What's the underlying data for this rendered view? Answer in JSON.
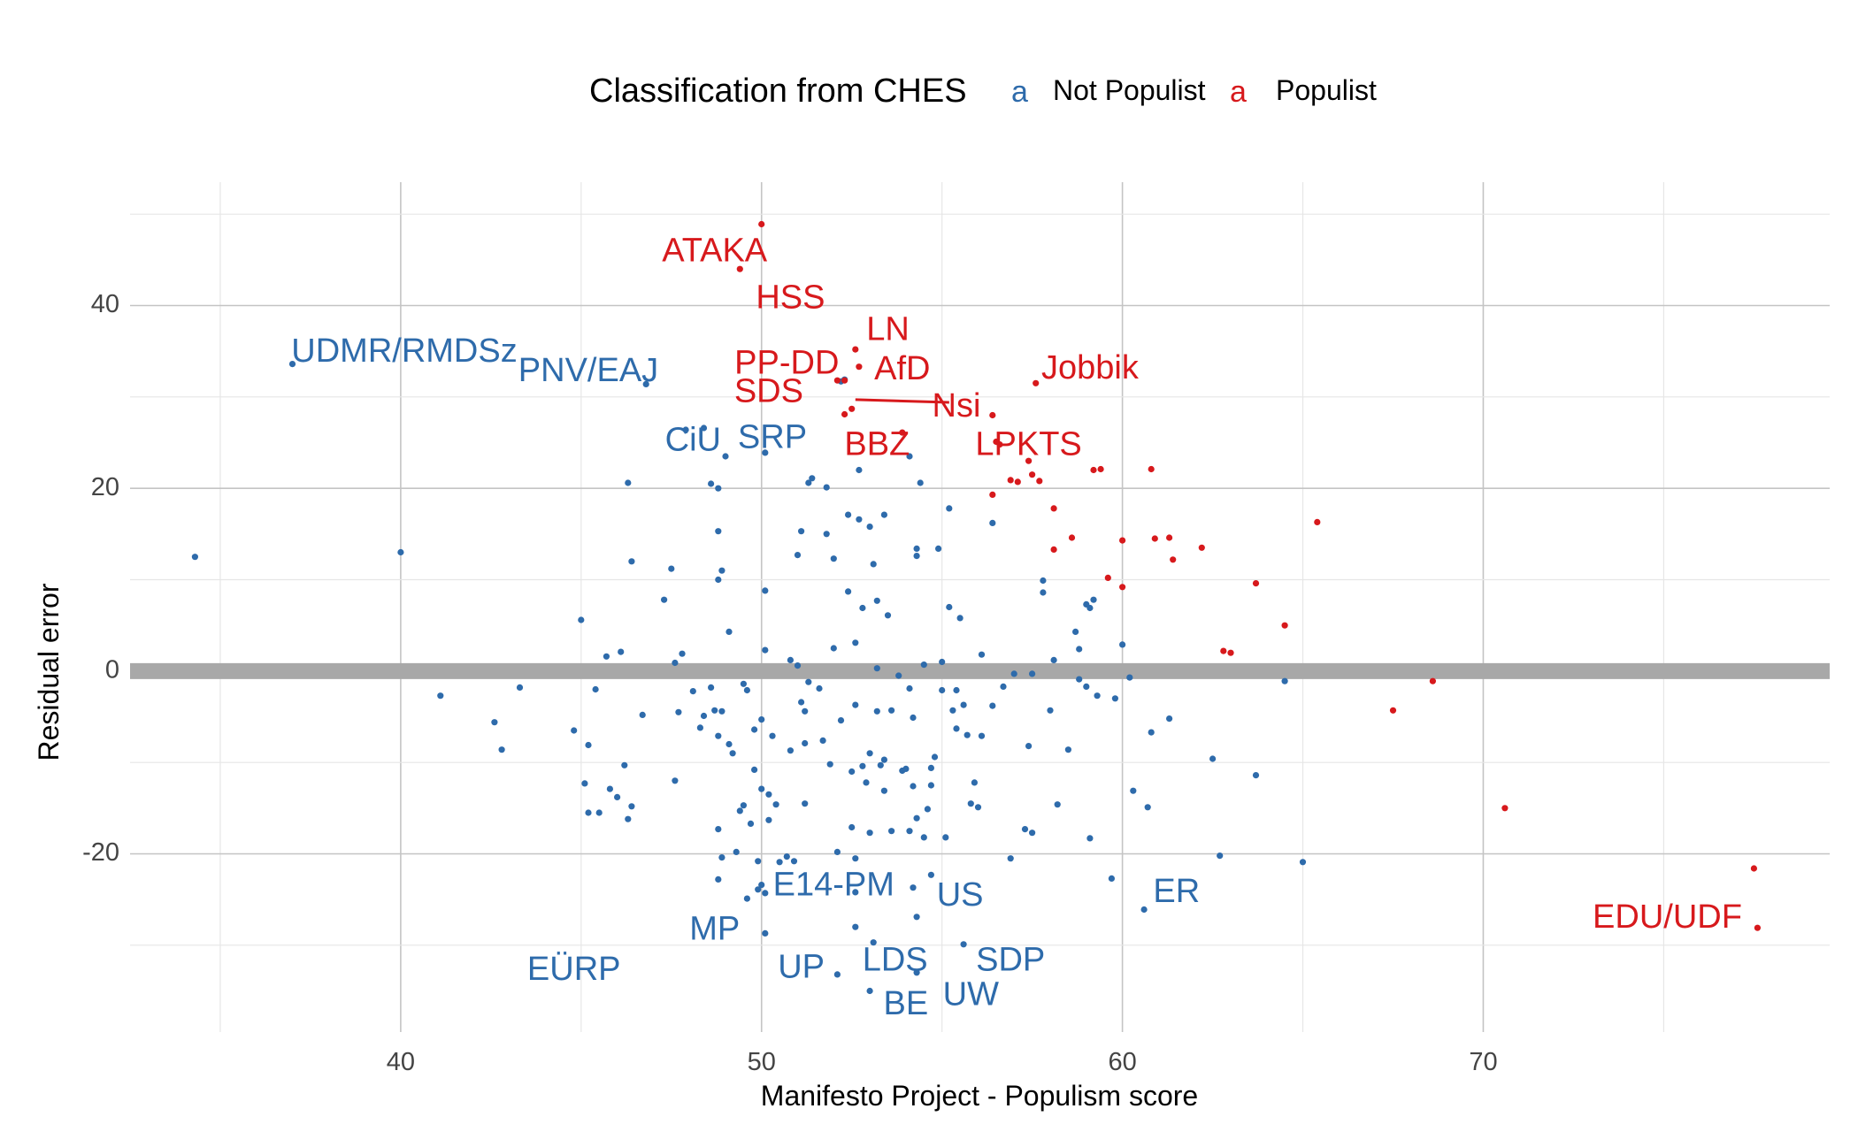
{
  "chart_data": {
    "type": "scatter",
    "title": "",
    "xlabel": "Manifesto Project - Populism score",
    "ylabel": "Residual error",
    "xlim": [
      32.5,
      79.6
    ],
    "ylim": [
      -39.5,
      53.5
    ],
    "x_ticks": [
      40,
      50,
      60,
      70
    ],
    "y_ticks": [
      -20,
      0,
      20,
      40
    ],
    "x_tick_labels": [
      "40",
      "50",
      "60",
      "70"
    ],
    "y_tick_labels": [
      "-20",
      "0",
      "20",
      "40"
    ],
    "grid": true,
    "reference_line_y": 0,
    "legend": {
      "title": "Classification from CHES",
      "placement": "top",
      "entries": [
        {
          "label": "Not Populist",
          "key": "a",
          "color": "#2e6bab"
        },
        {
          "label": "Populist",
          "key": "a",
          "color": "#d7191c"
        }
      ]
    },
    "colors": {
      "Not Populist": "#2e6bab",
      "Populist": "#d7191c",
      "reference_line": "#a8a8a8",
      "grid": "#d9d9d9"
    },
    "series": [
      {
        "name": "Not Populist",
        "points": [
          [
            34.3,
            12.5
          ],
          [
            37.0,
            33.6
          ],
          [
            40.0,
            13.0
          ],
          [
            41.1,
            -2.7
          ],
          [
            42.6,
            -5.6
          ],
          [
            42.8,
            -8.6
          ],
          [
            43.3,
            -1.8
          ],
          [
            44.8,
            -6.5
          ],
          [
            45.1,
            -12.3
          ],
          [
            45.2,
            -8.1
          ],
          [
            45.0,
            5.6
          ],
          [
            45.2,
            -15.5
          ],
          [
            45.5,
            -15.5
          ],
          [
            45.4,
            -2.0
          ],
          [
            45.7,
            1.6
          ],
          [
            45.8,
            -12.9
          ],
          [
            46.0,
            -13.8
          ],
          [
            46.1,
            2.1
          ],
          [
            46.2,
            -10.3
          ],
          [
            46.3,
            -16.2
          ],
          [
            46.4,
            -14.8
          ],
          [
            46.4,
            12.0
          ],
          [
            46.3,
            20.6
          ],
          [
            46.7,
            -4.8
          ],
          [
            46.8,
            31.4
          ],
          [
            47.3,
            7.8
          ],
          [
            47.5,
            11.2
          ],
          [
            47.6,
            -12.0
          ],
          [
            47.6,
            0.9
          ],
          [
            47.8,
            1.9
          ],
          [
            47.7,
            -4.5
          ],
          [
            47.9,
            26.4
          ],
          [
            48.1,
            -2.2
          ],
          [
            48.3,
            -6.2
          ],
          [
            48.4,
            -4.9
          ],
          [
            48.4,
            26.6
          ],
          [
            48.6,
            20.5
          ],
          [
            48.6,
            -1.8
          ],
          [
            48.7,
            -4.3
          ],
          [
            48.8,
            -7.1
          ],
          [
            48.8,
            20.0
          ],
          [
            48.8,
            10.0
          ],
          [
            48.8,
            15.3
          ],
          [
            48.9,
            -4.4
          ],
          [
            48.9,
            11.0
          ],
          [
            48.8,
            -17.3
          ],
          [
            48.8,
            -22.8
          ],
          [
            48.9,
            -20.4
          ],
          [
            49.0,
            23.5
          ],
          [
            49.1,
            4.3
          ],
          [
            49.1,
            -8.0
          ],
          [
            49.2,
            -9.0
          ],
          [
            49.3,
            -19.8
          ],
          [
            49.4,
            -15.3
          ],
          [
            49.5,
            -1.4
          ],
          [
            49.5,
            -14.7
          ],
          [
            49.6,
            -2.1
          ],
          [
            49.6,
            -24.9
          ],
          [
            49.7,
            -16.7
          ],
          [
            49.8,
            -10.8
          ],
          [
            49.8,
            -6.4
          ],
          [
            49.9,
            -20.8
          ],
          [
            50.0,
            -5.3
          ],
          [
            50.0,
            -12.9
          ],
          [
            50.0,
            -23.4
          ],
          [
            50.1,
            -24.3
          ],
          [
            50.1,
            -28.7
          ],
          [
            50.1,
            8.8
          ],
          [
            50.1,
            2.3
          ],
          [
            50.1,
            23.9
          ],
          [
            50.2,
            -16.3
          ],
          [
            50.2,
            -13.5
          ],
          [
            50.3,
            -7.1
          ],
          [
            50.4,
            -14.6
          ],
          [
            50.5,
            -20.9
          ],
          [
            50.7,
            -20.3
          ],
          [
            50.8,
            -8.7
          ],
          [
            50.8,
            1.2
          ],
          [
            50.9,
            -20.8
          ],
          [
            51.0,
            0.6
          ],
          [
            51.0,
            12.7
          ],
          [
            51.1,
            15.3
          ],
          [
            51.2,
            -14.5
          ],
          [
            51.2,
            -7.9
          ],
          [
            51.2,
            -4.4
          ],
          [
            51.3,
            -1.2
          ],
          [
            51.3,
            20.6
          ],
          [
            51.4,
            21.1
          ],
          [
            51.6,
            -1.9
          ],
          [
            51.7,
            -7.6
          ],
          [
            51.8,
            15.0
          ],
          [
            51.8,
            20.1
          ],
          [
            51.9,
            -10.2
          ],
          [
            52.0,
            2.5
          ],
          [
            52.0,
            12.3
          ],
          [
            52.1,
            -19.8
          ],
          [
            52.1,
            -33.2
          ],
          [
            52.2,
            -5.4
          ],
          [
            52.2,
            31.7
          ],
          [
            52.4,
            8.7
          ],
          [
            52.4,
            17.1
          ],
          [
            52.5,
            -11.0
          ],
          [
            52.5,
            -17.1
          ],
          [
            52.6,
            -20.5
          ],
          [
            52.6,
            -24.2
          ],
          [
            52.6,
            -28.0
          ],
          [
            52.6,
            -3.7
          ],
          [
            52.6,
            3.1
          ],
          [
            52.7,
            16.6
          ],
          [
            52.7,
            22.0
          ],
          [
            52.8,
            6.9
          ],
          [
            52.8,
            -10.4
          ],
          [
            52.9,
            -12.2
          ],
          [
            53.0,
            -35.0
          ],
          [
            53.0,
            -17.7
          ],
          [
            53.0,
            -9.0
          ],
          [
            53.0,
            15.8
          ],
          [
            53.1,
            11.7
          ],
          [
            53.1,
            -29.7
          ],
          [
            53.2,
            -4.4
          ],
          [
            53.2,
            0.3
          ],
          [
            53.2,
            7.7
          ],
          [
            53.3,
            -10.3
          ],
          [
            53.4,
            -13.1
          ],
          [
            53.4,
            -9.7
          ],
          [
            53.4,
            17.1
          ],
          [
            53.5,
            6.1
          ],
          [
            53.6,
            -17.5
          ],
          [
            53.6,
            -4.3
          ],
          [
            53.8,
            -0.5
          ],
          [
            53.9,
            -10.9
          ],
          [
            54.0,
            -10.7
          ],
          [
            54.1,
            -1.9
          ],
          [
            54.1,
            -17.5
          ],
          [
            54.1,
            23.5
          ],
          [
            54.2,
            -5.1
          ],
          [
            54.2,
            -12.6
          ],
          [
            54.2,
            -23.7
          ],
          [
            54.3,
            -16.1
          ],
          [
            54.3,
            -26.9
          ],
          [
            54.3,
            -33.0
          ],
          [
            54.3,
            12.6
          ],
          [
            54.3,
            13.4
          ],
          [
            54.4,
            20.6
          ],
          [
            54.5,
            -18.2
          ],
          [
            54.5,
            0.7
          ],
          [
            54.6,
            -15.1
          ],
          [
            54.7,
            -12.5
          ],
          [
            54.7,
            -22.3
          ],
          [
            54.7,
            -10.6
          ],
          [
            54.8,
            -9.4
          ],
          [
            54.9,
            13.4
          ],
          [
            55.0,
            -2.1
          ],
          [
            55.0,
            1.0
          ],
          [
            55.1,
            -18.2
          ],
          [
            55.2,
            17.8
          ],
          [
            55.2,
            7.0
          ],
          [
            55.3,
            -4.3
          ],
          [
            55.4,
            -2.1
          ],
          [
            55.4,
            -6.3
          ],
          [
            55.5,
            5.8
          ],
          [
            55.6,
            -3.7
          ],
          [
            55.6,
            -29.9
          ],
          [
            55.7,
            -7.0
          ],
          [
            55.8,
            -14.5
          ],
          [
            55.9,
            -12.2
          ],
          [
            56.0,
            -14.9
          ],
          [
            56.1,
            1.8
          ],
          [
            56.1,
            -7.1
          ],
          [
            56.4,
            -3.8
          ],
          [
            56.4,
            16.2
          ],
          [
            56.7,
            -1.7
          ],
          [
            56.9,
            -20.5
          ],
          [
            57.0,
            -0.3
          ],
          [
            57.3,
            -17.3
          ],
          [
            57.4,
            -8.2
          ],
          [
            57.5,
            -17.7
          ],
          [
            57.5,
            -0.3
          ],
          [
            57.8,
            8.6
          ],
          [
            57.8,
            9.9
          ],
          [
            58.0,
            -4.3
          ],
          [
            58.1,
            1.2
          ],
          [
            58.2,
            -14.6
          ],
          [
            58.5,
            -8.6
          ],
          [
            58.7,
            4.3
          ],
          [
            58.8,
            2.4
          ],
          [
            58.8,
            -0.9
          ],
          [
            59.0,
            -1.7
          ],
          [
            59.0,
            7.3
          ],
          [
            59.1,
            6.9
          ],
          [
            59.1,
            -18.3
          ],
          [
            59.2,
            7.8
          ],
          [
            59.3,
            -2.7
          ],
          [
            59.7,
            -22.7
          ],
          [
            59.8,
            -3.0
          ],
          [
            60.0,
            2.9
          ],
          [
            60.2,
            -0.7
          ],
          [
            60.3,
            -13.1
          ],
          [
            60.6,
            -26.1
          ],
          [
            60.7,
            -14.9
          ],
          [
            60.8,
            -6.7
          ],
          [
            61.3,
            -5.2
          ],
          [
            62.5,
            -9.6
          ],
          [
            62.7,
            -20.2
          ],
          [
            63.7,
            -11.4
          ],
          [
            64.5,
            -1.1
          ],
          [
            65.0,
            -20.9
          ],
          [
            52.3,
            31.9
          ],
          [
            51.1,
            -3.4
          ],
          [
            49.9,
            -23.9
          ]
        ]
      },
      {
        "name": "Populist",
        "points": [
          [
            50.0,
            48.9
          ],
          [
            49.4,
            44.0
          ],
          [
            52.6,
            35.2
          ],
          [
            52.7,
            33.3
          ],
          [
            52.1,
            31.8
          ],
          [
            52.3,
            31.8
          ],
          [
            52.5,
            28.7
          ],
          [
            52.3,
            28.1
          ],
          [
            53.9,
            26.1
          ],
          [
            56.4,
            28.0
          ],
          [
            57.6,
            31.5
          ],
          [
            56.5,
            25.1
          ],
          [
            56.6,
            24.8
          ],
          [
            57.4,
            23.0
          ],
          [
            57.5,
            21.5
          ],
          [
            57.7,
            20.8
          ],
          [
            56.9,
            20.9
          ],
          [
            57.1,
            20.7
          ],
          [
            56.4,
            19.3
          ],
          [
            58.1,
            17.8
          ],
          [
            58.6,
            14.6
          ],
          [
            58.1,
            13.3
          ],
          [
            59.2,
            22.0
          ],
          [
            59.4,
            22.1
          ],
          [
            60.8,
            22.1
          ],
          [
            60.0,
            14.3
          ],
          [
            60.9,
            14.5
          ],
          [
            61.3,
            14.6
          ],
          [
            61.4,
            12.2
          ],
          [
            62.2,
            13.5
          ],
          [
            59.6,
            10.2
          ],
          [
            60.0,
            9.2
          ],
          [
            63.7,
            9.6
          ],
          [
            64.5,
            5.0
          ],
          [
            65.4,
            16.3
          ],
          [
            62.8,
            2.2
          ],
          [
            63.0,
            2.0
          ],
          [
            67.5,
            -4.3
          ],
          [
            68.6,
            -1.1
          ],
          [
            70.6,
            -15.0
          ],
          [
            77.5,
            -21.6
          ],
          [
            77.6,
            -28.1
          ]
        ]
      }
    ],
    "labels": [
      {
        "text": "ATAKA",
        "x": 48.7,
        "y": 45.8,
        "series": "Populist"
      },
      {
        "text": "HSS",
        "x": 50.8,
        "y": 40.7,
        "series": "Populist"
      },
      {
        "text": "LN",
        "x": 53.5,
        "y": 37.2,
        "series": "Populist"
      },
      {
        "text": "PP-DD",
        "x": 50.7,
        "y": 33.5,
        "series": "Populist"
      },
      {
        "text": "AfD",
        "x": 53.9,
        "y": 32.9,
        "series": "Populist"
      },
      {
        "text": "Jobbik",
        "x": 59.1,
        "y": 33.0,
        "series": "Populist"
      },
      {
        "text": "SDS",
        "x": 50.2,
        "y": 30.4,
        "series": "Populist"
      },
      {
        "text": "Nsi",
        "x": 55.4,
        "y": 28.8,
        "series": "Populist"
      },
      {
        "text": "BBZ",
        "x": 53.2,
        "y": 24.6,
        "series": "Populist"
      },
      {
        "text": "LPKTS",
        "x": 57.4,
        "y": 24.6,
        "series": "Populist"
      },
      {
        "text": "EDU/UDF",
        "x": 75.1,
        "y": -27.1,
        "series": "Populist"
      },
      {
        "text": "UDMR/RMDSz",
        "x": 40.1,
        "y": 34.8,
        "series": "Not Populist"
      },
      {
        "text": "PNV/EAJ",
        "x": 45.2,
        "y": 32.7,
        "series": "Not Populist"
      },
      {
        "text": "CiU",
        "x": 48.1,
        "y": 25.1,
        "series": "Not Populist"
      },
      {
        "text": "SRP",
        "x": 50.3,
        "y": 25.4,
        "series": "Not Populist"
      },
      {
        "text": "E14-PM",
        "x": 52.0,
        "y": -23.6,
        "series": "Not Populist"
      },
      {
        "text": "US",
        "x": 55.5,
        "y": -24.7,
        "series": "Not Populist"
      },
      {
        "text": "ER",
        "x": 61.5,
        "y": -24.3,
        "series": "Not Populist"
      },
      {
        "text": "MP",
        "x": 48.7,
        "y": -28.4,
        "series": "Not Populist"
      },
      {
        "text": "EÜRP",
        "x": 44.8,
        "y": -32.8,
        "series": "Not Populist"
      },
      {
        "text": "UP",
        "x": 51.1,
        "y": -32.6,
        "series": "Not Populist"
      },
      {
        "text": "LDS",
        "x": 53.7,
        "y": -31.8,
        "series": "Not Populist"
      },
      {
        "text": "SDP",
        "x": 56.9,
        "y": -31.8,
        "series": "Not Populist"
      },
      {
        "text": "UW",
        "x": 55.8,
        "y": -35.6,
        "series": "Not Populist"
      },
      {
        "text": "BE",
        "x": 54.0,
        "y": -36.6,
        "series": "Not Populist"
      }
    ],
    "connectors": [
      {
        "from": [
          52.6,
          29.7
        ],
        "to": [
          55.2,
          29.4
        ],
        "series": "Populist"
      }
    ]
  }
}
